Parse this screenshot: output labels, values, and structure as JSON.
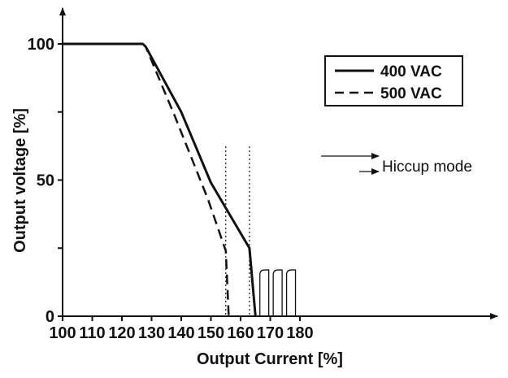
{
  "chart_data": {
    "type": "line",
    "xlabel": "Output Current [%]",
    "ylabel": "Output voltage [%]",
    "xlim": [
      100,
      180
    ],
    "ylim": [
      0,
      100
    ],
    "x_ticks": [
      "100",
      "110",
      "120",
      "130",
      "140",
      "150",
      "160",
      "170",
      "180"
    ],
    "y_ticks": [
      "0",
      "50",
      "100"
    ],
    "series": [
      {
        "name": "400 VAC",
        "style": "solid",
        "points": [
          [
            100,
            100
          ],
          [
            127,
            100
          ],
          [
            128,
            99
          ],
          [
            140,
            75
          ],
          [
            150,
            49
          ],
          [
            163,
            25
          ],
          [
            165,
            0
          ]
        ]
      },
      {
        "name": "500 VAC",
        "style": "dashed",
        "points": [
          [
            127,
            100
          ],
          [
            128,
            99
          ],
          [
            138,
            73
          ],
          [
            149,
            43
          ],
          [
            155,
            24
          ],
          [
            156,
            0
          ]
        ]
      }
    ],
    "hiccup_pulses": {
      "x_starts": [
        166.5,
        171,
        175.5
      ],
      "width": 3,
      "height": 17
    },
    "hiccup_markers": [
      155,
      163
    ],
    "annotation": "Hiccup mode",
    "legend_position": "top-right",
    "grid": false,
    "colors": {
      "line": "#111111",
      "background": "#ffffff"
    }
  }
}
